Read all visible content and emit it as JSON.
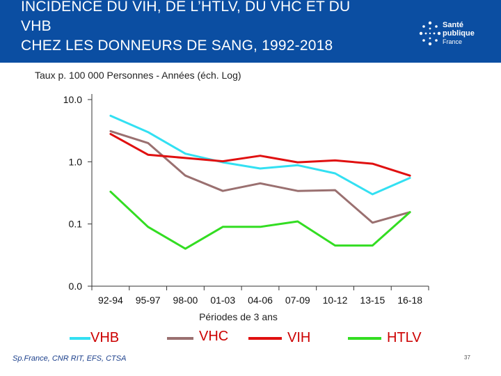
{
  "header": {
    "title_line1": "INCIDENCE DU VIH, DE L’HTLV, DU VHC ET DU",
    "title_line2": "VHB",
    "title_line3": "CHEZ LES DONNEURS DE SANG, 1992-2018"
  },
  "logo": {
    "line1": "Santé",
    "line2": "publique",
    "line3": "France"
  },
  "colors": {
    "header_bg": "#0b4ea2",
    "VHB": "#33e0f2",
    "VHC": "#9a7070",
    "VIH": "#e01010",
    "HTLV": "#33dd22",
    "legend_text": "#cc0000"
  },
  "chart_data": {
    "type": "line",
    "yscale": "log",
    "ylabel": "Taux p. 100 000 Personnes - Années (éch. Log)",
    "xlabel": "Périodes de 3 ans",
    "ylim": [
      0.01,
      10
    ],
    "y_ticks": [
      {
        "value": 10,
        "label": "10.0"
      },
      {
        "value": 1,
        "label": "1.0"
      },
      {
        "value": 0.1,
        "label": "0.1"
      },
      {
        "value": 0.01,
        "label": "0.0"
      }
    ],
    "categories": [
      "92-94",
      "95-97",
      "98-00",
      "01-03",
      "04-06",
      "07-09",
      "10-12",
      "13-15",
      "16-18"
    ],
    "series": [
      {
        "name": "VHB",
        "values": [
          5.5,
          3.0,
          1.35,
          0.98,
          0.78,
          0.88,
          0.65,
          0.3,
          0.55
        ]
      },
      {
        "name": "VHC",
        "values": [
          3.1,
          2.0,
          0.6,
          0.34,
          0.45,
          0.34,
          0.35,
          0.105,
          0.155
        ]
      },
      {
        "name": "VIH",
        "values": [
          2.8,
          1.3,
          1.15,
          1.02,
          1.25,
          0.98,
          1.05,
          0.93,
          0.6
        ]
      },
      {
        "name": "HTLV",
        "values": [
          0.33,
          0.09,
          0.04,
          0.09,
          0.09,
          0.11,
          0.045,
          0.045,
          0.155
        ]
      }
    ]
  },
  "source": "Sp.France, CNR RIT,  EFS, CTSA",
  "page_number": "37"
}
